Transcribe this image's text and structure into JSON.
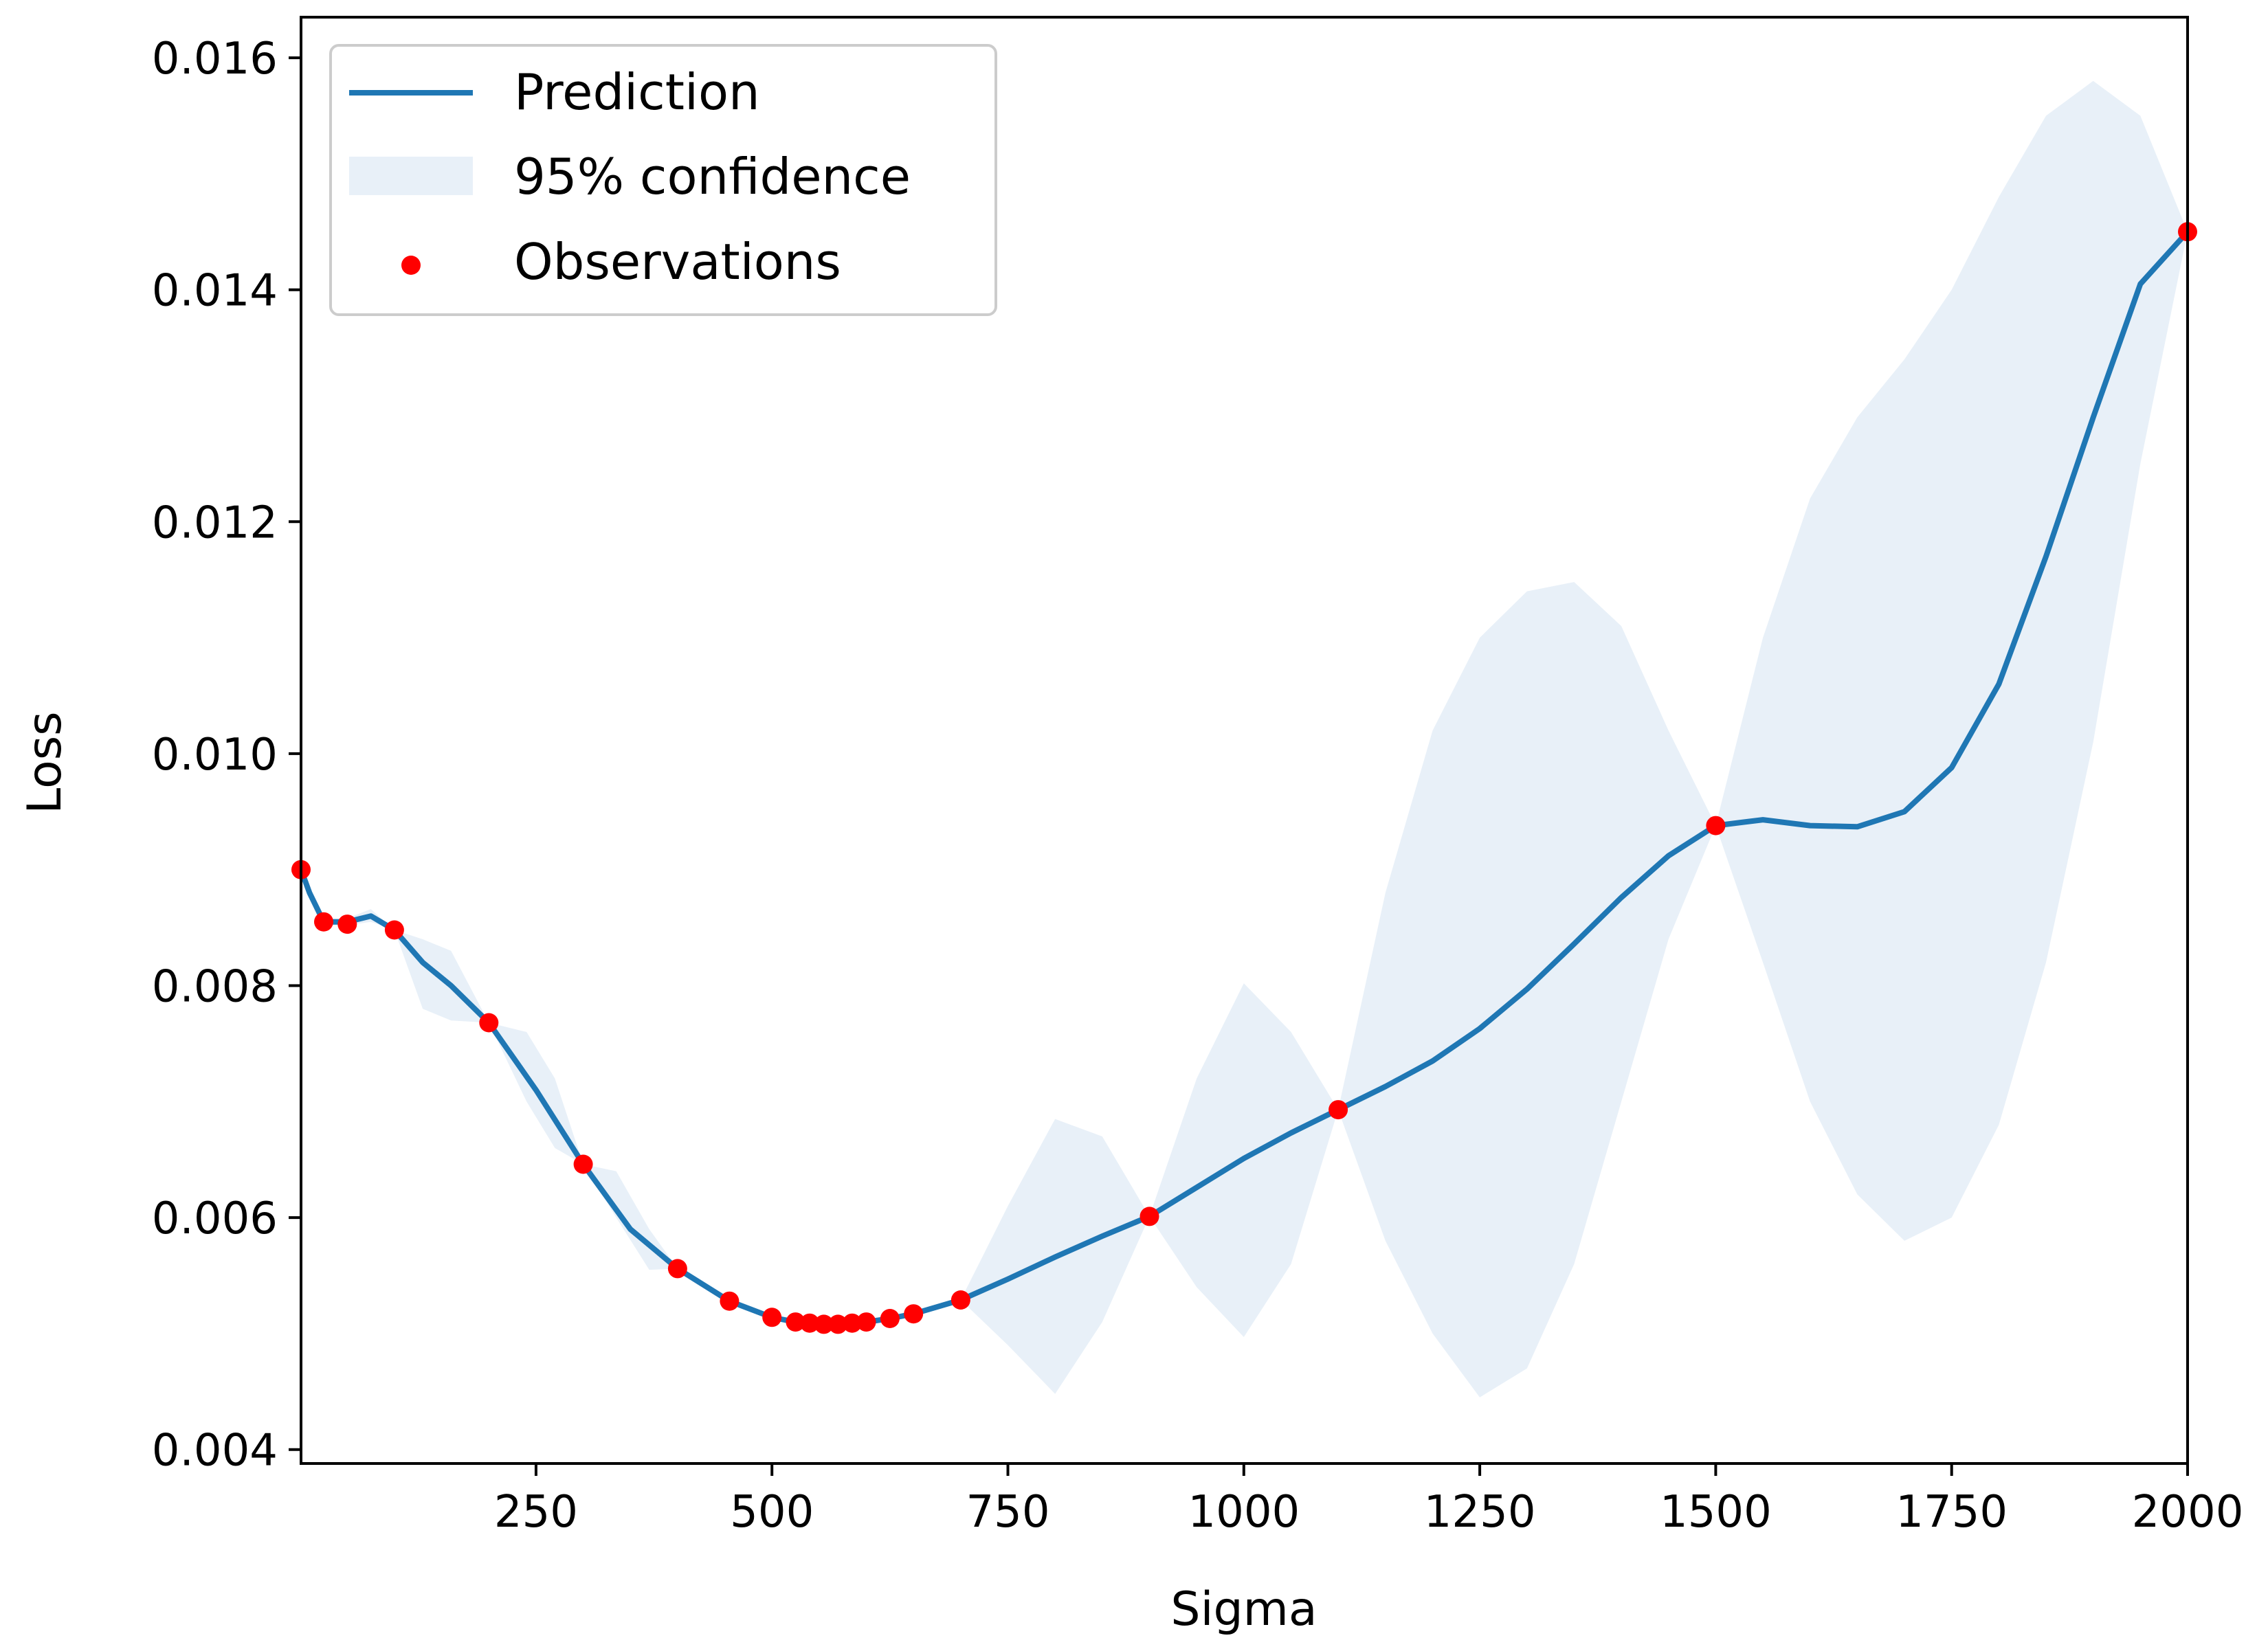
{
  "chart_data": {
    "type": "line",
    "xlabel": "Sigma",
    "ylabel": "Loss",
    "xlim": [
      1,
      2000
    ],
    "ylim": [
      0.00388,
      0.01635
    ],
    "x_ticks": [
      250,
      500,
      750,
      1000,
      1250,
      1500,
      1750,
      2000
    ],
    "x_tick_labels": [
      "250",
      "500",
      "750",
      "1000",
      "1250",
      "1500",
      "1750",
      "2000"
    ],
    "y_ticks": [
      0.004,
      0.006,
      0.008,
      0.01,
      0.012,
      0.014,
      0.016
    ],
    "y_tick_labels": [
      "0.004",
      "0.006",
      "0.008",
      "0.010",
      "0.012",
      "0.014",
      "0.016"
    ],
    "grid": false,
    "legend": {
      "placement": "top-left",
      "entries": [
        "Prediction",
        "95% confidence",
        "Observations"
      ]
    },
    "colors": {
      "prediction": "#1f77b4",
      "confidence": "#e8f0f8",
      "observations": "#ff0000"
    },
    "series": [
      {
        "name": "Prediction",
        "kind": "line",
        "x": [
          1,
          10,
          25,
          50,
          75,
          100,
          130,
          160,
          200,
          250,
          300,
          350,
          400,
          455,
          500,
          525,
          550,
          575,
          600,
          625,
          650,
          700,
          750,
          800,
          850,
          900,
          950,
          1000,
          1050,
          1100,
          1150,
          1200,
          1250,
          1300,
          1350,
          1400,
          1450,
          1500,
          1550,
          1600,
          1650,
          1700,
          1750,
          1800,
          1850,
          1900,
          1950,
          2000
        ],
        "y": [
          0.009,
          0.0088,
          0.00855,
          0.00855,
          0.0086,
          0.00848,
          0.0082,
          0.008,
          0.00768,
          0.0071,
          0.00646,
          0.0059,
          0.00556,
          0.00528,
          0.00514,
          0.0051,
          0.00508,
          0.00508,
          0.0051,
          0.00513,
          0.00517,
          0.00529,
          0.00547,
          0.00566,
          0.00584,
          0.00601,
          0.00626,
          0.00651,
          0.00673,
          0.00693,
          0.00713,
          0.00735,
          0.00763,
          0.00797,
          0.00836,
          0.00876,
          0.00912,
          0.00938,
          0.00943,
          0.00938,
          0.00937,
          0.0095,
          0.00988,
          0.0106,
          0.0117,
          0.0129,
          0.01405,
          0.0145
        ]
      },
      {
        "name": "95% confidence",
        "kind": "band",
        "x": [
          1,
          25,
          50,
          75,
          100,
          130,
          160,
          200,
          240,
          270,
          300,
          335,
          370,
          400,
          450,
          500,
          550,
          600,
          650,
          700,
          750,
          800,
          850,
          900,
          950,
          1000,
          1050,
          1100,
          1150,
          1200,
          1250,
          1300,
          1350,
          1400,
          1450,
          1500,
          1550,
          1600,
          1650,
          1700,
          1750,
          1800,
          1850,
          1900,
          1950,
          2000
        ],
        "lower": [
          0.009,
          0.00852,
          0.00852,
          0.00855,
          0.00848,
          0.0078,
          0.0077,
          0.00768,
          0.007,
          0.0066,
          0.00646,
          0.006,
          0.00555,
          0.00556,
          0.00528,
          0.00514,
          0.00508,
          0.0051,
          0.00517,
          0.00529,
          0.0049,
          0.00448,
          0.0051,
          0.00601,
          0.0054,
          0.00497,
          0.0056,
          0.00693,
          0.0058,
          0.005,
          0.00445,
          0.0047,
          0.0056,
          0.007,
          0.0084,
          0.00938,
          0.0082,
          0.007,
          0.0062,
          0.0058,
          0.006,
          0.0068,
          0.0082,
          0.0101,
          0.0125,
          0.0145
        ],
        "upper": [
          0.009,
          0.00858,
          0.00858,
          0.00866,
          0.00848,
          0.0084,
          0.0083,
          0.00768,
          0.0076,
          0.0072,
          0.00646,
          0.0064,
          0.0059,
          0.00556,
          0.00528,
          0.00514,
          0.00508,
          0.0051,
          0.00517,
          0.00529,
          0.0061,
          0.00685,
          0.0067,
          0.00601,
          0.0072,
          0.00802,
          0.0076,
          0.00693,
          0.0088,
          0.0102,
          0.011,
          0.0114,
          0.01148,
          0.0111,
          0.0102,
          0.00938,
          0.011,
          0.0122,
          0.0129,
          0.0134,
          0.014,
          0.0148,
          0.0155,
          0.0158,
          0.0155,
          0.0145
        ]
      },
      {
        "name": "Observations",
        "kind": "scatter",
        "x": [
          1,
          25,
          50,
          100,
          200,
          300,
          400,
          455,
          500,
          525,
          540,
          555,
          570,
          585,
          600,
          625,
          650,
          700,
          900,
          1100,
          1500,
          2000
        ],
        "y": [
          0.009,
          0.00855,
          0.00853,
          0.00848,
          0.00768,
          0.00646,
          0.00556,
          0.00528,
          0.00514,
          0.0051,
          0.00509,
          0.00508,
          0.00508,
          0.00509,
          0.0051,
          0.00513,
          0.00517,
          0.00529,
          0.00601,
          0.00693,
          0.00938,
          0.0145
        ]
      }
    ]
  }
}
